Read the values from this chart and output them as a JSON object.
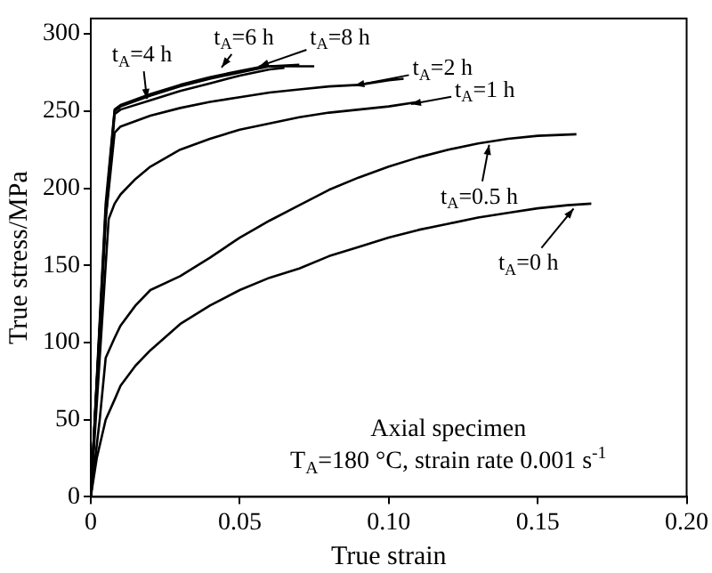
{
  "chart_data": {
    "type": "line",
    "xlabel": "True strain",
    "ylabel": "True stress/MPa",
    "xlim": [
      0,
      0.2
    ],
    "ylim": [
      0,
      310
    ],
    "xticks": [
      0,
      {
        "value": 0.05,
        "label": "0.05"
      },
      {
        "value": 0.1,
        "label": "0.10"
      },
      {
        "value": 0.15,
        "label": "0.15"
      },
      {
        "value": 0.2,
        "label": "0.20"
      }
    ],
    "yticks": [
      0,
      50,
      100,
      150,
      200,
      250,
      300
    ],
    "grid": false,
    "legend": false,
    "marker": "none",
    "line_style": "solid",
    "series": [
      {
        "color": "#000000",
        "x": [
          0,
          0.002,
          0.005,
          0.008,
          0.01,
          0.015,
          0.02,
          0.03,
          0.04,
          0.05,
          0.06,
          0.07,
          0.08,
          0.09,
          0.1,
          0.11,
          0.12,
          0.13,
          0.14,
          0.15,
          0.16,
          0.168
        ],
        "values": [
          0,
          25,
          50,
          63,
          72,
          85,
          95,
          112,
          124,
          134,
          142,
          148,
          156,
          162,
          168,
          173,
          177,
          181,
          184,
          187,
          189,
          190
        ]
      },
      {
        "color": "#000000",
        "x": [
          0,
          0.003,
          0.005,
          0.008,
          0.01,
          0.015,
          0.02,
          0.03,
          0.04,
          0.05,
          0.06,
          0.07,
          0.08,
          0.09,
          0.1,
          0.11,
          0.12,
          0.13,
          0.14,
          0.15,
          0.163
        ],
        "values": [
          0,
          50,
          90,
          103,
          111,
          124,
          134,
          143,
          155,
          168,
          179,
          189,
          199,
          207,
          214,
          220,
          225,
          229,
          232,
          234,
          235
        ]
      },
      {
        "color": "#000000",
        "x": [
          0,
          0.004,
          0.006,
          0.008,
          0.01,
          0.015,
          0.02,
          0.03,
          0.04,
          0.05,
          0.06,
          0.07,
          0.08,
          0.09,
          0.1,
          0.11
        ],
        "values": [
          0,
          120,
          180,
          190,
          196,
          206,
          214,
          225,
          232,
          238,
          242,
          246,
          249,
          251,
          253,
          256
        ]
      },
      {
        "color": "#000000",
        "x": [
          0,
          0.005,
          0.008,
          0.01,
          0.02,
          0.03,
          0.04,
          0.05,
          0.06,
          0.07,
          0.08,
          0.09,
          0.1,
          0.105
        ],
        "values": [
          0,
          180,
          236,
          240,
          247,
          252,
          256,
          259,
          262,
          264,
          266,
          267,
          270,
          271
        ]
      },
      {
        "color": "#000000",
        "x": [
          0,
          0.005,
          0.008,
          0.01,
          0.02,
          0.03,
          0.04,
          0.05,
          0.06,
          0.065
        ],
        "values": [
          0,
          180,
          248,
          251,
          257,
          263,
          268,
          273,
          277,
          278
        ]
      },
      {
        "color": "#000000",
        "x": [
          0,
          0.005,
          0.008,
          0.01,
          0.02,
          0.03,
          0.04,
          0.05,
          0.06,
          0.07
        ],
        "values": [
          0,
          185,
          250,
          253,
          260,
          266,
          271,
          275,
          279,
          280
        ]
      },
      {
        "color": "#000000",
        "x": [
          0,
          0.005,
          0.008,
          0.01,
          0.02,
          0.03,
          0.04,
          0.05,
          0.058,
          0.075
        ],
        "values": [
          0,
          190,
          251,
          254,
          261,
          267,
          272,
          276,
          279,
          279
        ]
      }
    ],
    "annotations": [
      {
        "text": "t$_{A}$=8 h",
        "x": 0.055,
        "y": 278
      },
      {
        "text": "t$_{A}$=6 h",
        "x": 0.043,
        "y": 276
      },
      {
        "text": "t$_{A}$=4 h",
        "x": 0.019,
        "y": 255
      },
      {
        "text": "t$_{A}$=2 h",
        "x": 0.087,
        "y": 266
      },
      {
        "text": "t$_{A}$=1 h",
        "x": 0.106,
        "y": 254
      },
      {
        "text": "t$_{A}$=0.5 h",
        "x": 0.134,
        "y": 231
      },
      {
        "text": "t$_{A}$=0 h",
        "x": 0.163,
        "y": 189
      },
      "Axial specimen",
      "T$_{A}$=180 °C, strain rate 0.001 s$^{-1}$"
    ]
  }
}
